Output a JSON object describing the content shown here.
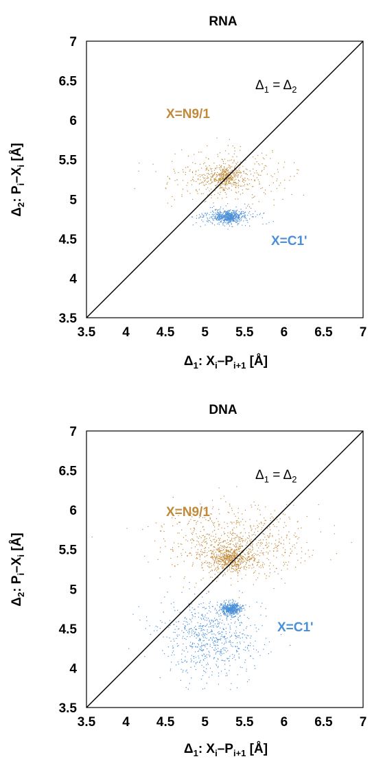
{
  "colors": {
    "n9": "#c08a3a",
    "c1": "#4a8fd8",
    "diagonal": "#000000"
  },
  "chart_data": [
    {
      "type": "scatter",
      "title": "RNA",
      "xlim": [
        3.5,
        7
      ],
      "ylim": [
        3.5,
        7
      ],
      "xticks": [
        "3.5",
        "4",
        "4.5",
        "5",
        "5.5",
        "6",
        "6.5",
        "7"
      ],
      "yticks": [
        "3.5",
        "4",
        "4.5",
        "5",
        "5.5",
        "6",
        "6.5",
        "7"
      ],
      "xlabel": {
        "greek": "Δ",
        "sub1": "1",
        "mid": ": X",
        "sub2": "i",
        "dash": "–P",
        "sub3": "i+1",
        "tail": " [Å]"
      },
      "ylabel": {
        "greek": "Δ",
        "sub1": "2",
        "mid": ": P",
        "sub2": "i",
        "dash": "–X",
        "sub3": "i",
        "tail": " [Å]"
      },
      "diagonal_label": {
        "left": "Δ",
        "left_sub": "1",
        "eq": " = ",
        "right": "Δ",
        "right_sub": "2"
      },
      "grid": false,
      "series": [
        {
          "name": "X=N9/1",
          "color": "#c08a3a",
          "center": [
            5.28,
            5.3
          ],
          "spread": [
            0.38,
            0.17
          ],
          "core_center": [
            5.26,
            5.28
          ],
          "core_spread": [
            0.1,
            0.06
          ],
          "count": 700
        },
        {
          "name": "X=C1'",
          "color": "#4a8fd8",
          "center": [
            5.3,
            4.78
          ],
          "spread": [
            0.17,
            0.05
          ],
          "core_center": [
            5.3,
            4.78
          ],
          "core_spread": [
            0.06,
            0.03
          ],
          "count": 650
        }
      ]
    },
    {
      "type": "scatter",
      "title": "DNA",
      "xlim": [
        3.5,
        7
      ],
      "ylim": [
        3.5,
        7
      ],
      "xticks": [
        "3.5",
        "4",
        "4.5",
        "5",
        "5.5",
        "6",
        "6.5",
        "7"
      ],
      "yticks": [
        "3.5",
        "4",
        "4.5",
        "5",
        "5.5",
        "6",
        "6.5",
        "7"
      ],
      "xlabel": {
        "greek": "Δ",
        "sub1": "1",
        "mid": ": X",
        "sub2": "i",
        "dash": "–P",
        "sub3": "i+1",
        "tail": " [Å]"
      },
      "ylabel": {
        "greek": "Δ",
        "sub1": "2",
        "mid": ": P",
        "sub2": "i",
        "dash": "–X",
        "sub3": "i",
        "tail": " [Å]"
      },
      "diagonal_label": {
        "left": "Δ",
        "left_sub": "1",
        "eq": " = ",
        "right": "Δ",
        "right_sub": "2"
      },
      "grid": false,
      "series": [
        {
          "name": "X=N9/1",
          "color": "#c08a3a",
          "center": [
            5.4,
            5.58
          ],
          "spread": [
            0.45,
            0.22
          ],
          "core_center": [
            5.32,
            5.38
          ],
          "core_spread": [
            0.12,
            0.08
          ],
          "count": 1300
        },
        {
          "name": "X=C1'",
          "color": "#4a8fd8",
          "center": [
            5.05,
            4.4
          ],
          "spread": [
            0.3,
            0.25
          ],
          "core_center": [
            5.33,
            4.75
          ],
          "core_spread": [
            0.06,
            0.04
          ],
          "count": 1200
        }
      ]
    }
  ]
}
